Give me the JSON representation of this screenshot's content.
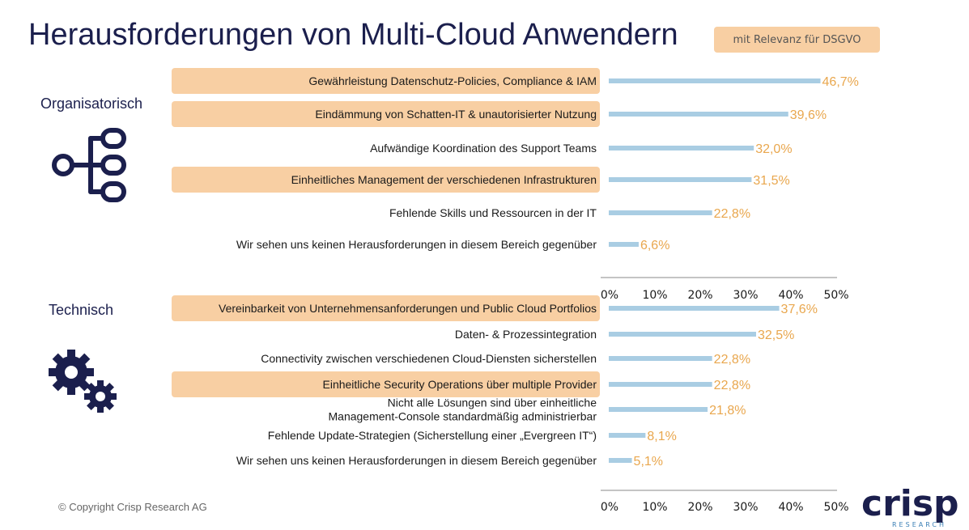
{
  "title": "Herausforderungen von Multi-Cloud Anwendern",
  "legend": {
    "label": "mit Relevanz für DSGVO"
  },
  "colors": {
    "bar": "#a9cde3",
    "highlight": "#f8cfa3",
    "value": "#e9a74e",
    "title": "#1b1f4d"
  },
  "icons": {
    "organisational": "hierarchy-icon",
    "technical": "gears-icon"
  },
  "copyright": "© Copyright Crisp Research AG",
  "logo": {
    "name": "crisp",
    "sub": "RESEARCH"
  },
  "chart_data": [
    {
      "type": "bar",
      "orientation": "horizontal",
      "section": "Organisatorisch",
      "xlim": [
        0,
        50
      ],
      "ticks": [
        "0%",
        "10%",
        "20%",
        "30%",
        "40%",
        "50%"
      ],
      "categories": [
        [
          "Gewährleistung Datenschutz-Policies, Compliance & IAM"
        ],
        [
          "Eindämmung von Schatten-IT & unautorisierter Nutzung"
        ],
        [
          "Aufwändige Koordination des Support Teams"
        ],
        [
          "Einheitliches Management der verschiedenen Infrastrukturen"
        ],
        [
          "Fehlende Skills und Ressourcen in der IT"
        ],
        [
          "Wir sehen uns keinen Herausforderungen in diesem Bereich gegenüber"
        ]
      ],
      "values": [
        46.7,
        39.6,
        32.0,
        31.5,
        22.8,
        6.6
      ],
      "value_labels": [
        "46,7%",
        "39,6%",
        "32,0%",
        "31,5%",
        "22,8%",
        "6,6%"
      ],
      "dsgvo_relevant": [
        true,
        true,
        false,
        true,
        false,
        false
      ]
    },
    {
      "type": "bar",
      "orientation": "horizontal",
      "section": "Technisch",
      "xlim": [
        0,
        50
      ],
      "ticks": [
        "0%",
        "10%",
        "20%",
        "30%",
        "40%",
        "50%"
      ],
      "categories": [
        [
          "Vereinbarkeit von Unternehmensanforderungen und Public Cloud Portfolios"
        ],
        [
          "Daten- & Prozessintegration"
        ],
        [
          "Connectivity zwischen verschiedenen Cloud-Diensten sicherstellen"
        ],
        [
          "Einheitliche Security Operations über multiple Provider"
        ],
        [
          "Nicht alle Lösungen sind über einheitliche",
          "Management-Console standardmäßig administrierbar"
        ],
        [
          "Fehlende Update-Strategien (Sicherstellung einer „Evergreen IT“)"
        ],
        [
          "Wir sehen uns keinen Herausforderungen in diesem Bereich gegenüber"
        ]
      ],
      "values": [
        37.6,
        32.5,
        22.8,
        22.8,
        21.8,
        8.1,
        5.1
      ],
      "value_labels": [
        "37,6%",
        "32,5%",
        "22,8%",
        "22,8%",
        "21,8%",
        "8,1%",
        "5,1%"
      ],
      "dsgvo_relevant": [
        true,
        false,
        false,
        true,
        false,
        false,
        false
      ]
    }
  ],
  "sections": {
    "org": "Organisatorisch",
    "tech": "Technisch"
  }
}
